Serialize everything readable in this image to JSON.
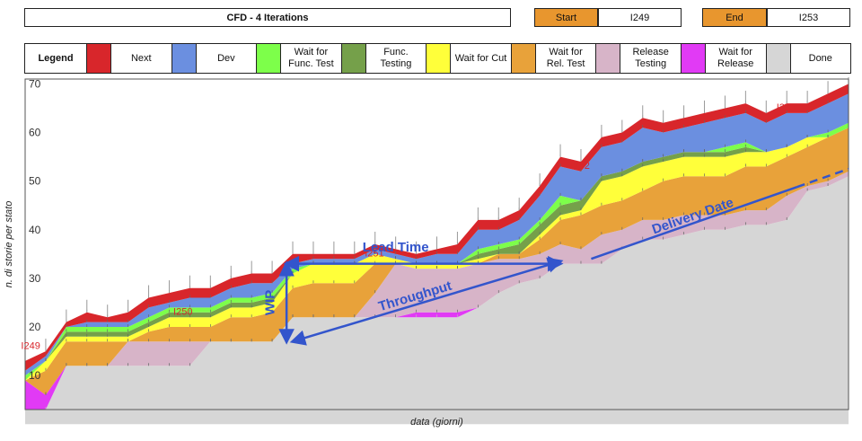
{
  "header": {
    "title": "CFD - 4 Iterations",
    "start_label": "Start",
    "start_value": "I249",
    "end_label": "End",
    "end_value": "I253"
  },
  "legend": {
    "title": "Legend",
    "items": [
      {
        "label": "Next",
        "color": "#d8262b"
      },
      {
        "label": "Dev",
        "color": "#6b8fe0"
      },
      {
        "label": "Wait for\nFunc. Test",
        "color": "#7dff4a"
      },
      {
        "label": "Func.\nTesting",
        "color": "#75a04a"
      },
      {
        "label": "Wait for Cut",
        "color": "#ffff3a"
      },
      {
        "label": "Wait for\nRel. Test",
        "color": "#e8a23a"
      },
      {
        "label": "Release\nTesting",
        "color": "#d7b4c8"
      },
      {
        "label": "Wait for\nRelease",
        "color": "#e13af5"
      },
      {
        "label": "Done",
        "color": "#d6d6d6"
      }
    ]
  },
  "chart_data": {
    "type": "area",
    "stacked": true,
    "xlabel": "data (giorni)",
    "ylabel": "n. di storie per stato",
    "ylim": [
      3,
      71
    ],
    "yticks": [
      10,
      20,
      30,
      40,
      50,
      60,
      70
    ],
    "x": [
      0,
      1,
      2,
      3,
      4,
      5,
      6,
      7,
      8,
      9,
      10,
      11,
      12,
      13,
      14,
      15,
      16,
      17,
      18,
      19,
      20,
      21,
      22,
      23,
      24,
      25,
      26,
      27,
      28,
      29,
      30,
      31,
      32,
      33,
      34,
      35,
      36,
      37,
      38,
      39,
      40
    ],
    "series": [
      {
        "name": "Done",
        "color": "#d6d6d6",
        "values": [
          3,
          3,
          12,
          12,
          12,
          12,
          12,
          12,
          12,
          17,
          17,
          17,
          17,
          22,
          22,
          22,
          22,
          22,
          22,
          22,
          22,
          22,
          24,
          27,
          29,
          30,
          33,
          33,
          33,
          36,
          38,
          38,
          39,
          40,
          40,
          41,
          41,
          42,
          48,
          49,
          51
        ]
      },
      {
        "name": "Wait for Release",
        "color": "#e13af5",
        "values": [
          6,
          3,
          0,
          0,
          0,
          0,
          0,
          0,
          0,
          0,
          0,
          0,
          0,
          0,
          0,
          0,
          0,
          0,
          0,
          1,
          1,
          1,
          0,
          0,
          0,
          0,
          0,
          0,
          0,
          0,
          0,
          0,
          0,
          0,
          0,
          0,
          0,
          0,
          0,
          0,
          0
        ]
      },
      {
        "name": "Release Testing",
        "color": "#d7b4c8",
        "values": [
          0,
          0,
          0,
          0,
          0,
          5,
          5,
          5,
          5,
          0,
          0,
          0,
          0,
          0,
          0,
          0,
          0,
          5,
          11,
          9,
          9,
          9,
          9,
          7,
          5,
          5,
          4,
          3,
          6,
          4,
          4,
          4,
          4,
          3,
          3,
          3,
          3,
          5,
          1,
          1,
          1
        ]
      },
      {
        "name": "Wait for Rel. Test",
        "color": "#e8a23a",
        "values": [
          0,
          5,
          5,
          5,
          5,
          0,
          2,
          3,
          3,
          3,
          5,
          5,
          6,
          6,
          7,
          7,
          7,
          6,
          0,
          0,
          0,
          0,
          0,
          1,
          1,
          3,
          5,
          7,
          6,
          6,
          6,
          8,
          8,
          8,
          8,
          9,
          9,
          8,
          8,
          9,
          9
        ]
      },
      {
        "name": "Wait for Cut",
        "color": "#ffff3a",
        "values": [
          0,
          2,
          1,
          1,
          1,
          1,
          1,
          2,
          2,
          2,
          2,
          2,
          2,
          3,
          4,
          4,
          4,
          2,
          1,
          1,
          1,
          1,
          1,
          0,
          0,
          1,
          1,
          1,
          5,
          5,
          5,
          4,
          4,
          4,
          4,
          3,
          3,
          2,
          2,
          0,
          0
        ]
      },
      {
        "name": "Func. Testing",
        "color": "#75a04a",
        "values": [
          0,
          0,
          1,
          1,
          1,
          1,
          1,
          1,
          1,
          1,
          1,
          1,
          1,
          0,
          0,
          0,
          0,
          0,
          0,
          0,
          0,
          0,
          1,
          1,
          2,
          2,
          2,
          2,
          1,
          1,
          1,
          1,
          1,
          1,
          1,
          1,
          0,
          0,
          0,
          0,
          0
        ]
      },
      {
        "name": "Wait for Func. Test",
        "color": "#7dff4a",
        "values": [
          1,
          0,
          1,
          1,
          1,
          1,
          1,
          1,
          1,
          1,
          1,
          1,
          1,
          1,
          0,
          0,
          0,
          0,
          0,
          0,
          0,
          0,
          1,
          1,
          1,
          1,
          2,
          0,
          0,
          0,
          0,
          0,
          0,
          0,
          1,
          1,
          0,
          0,
          0,
          1,
          1
        ]
      },
      {
        "name": "Dev",
        "color": "#6b8fe0",
        "values": [
          1,
          1,
          0,
          1,
          1,
          1,
          2,
          1,
          2,
          2,
          2,
          3,
          2,
          1,
          1,
          1,
          1,
          1,
          1,
          1,
          2,
          2,
          4,
          3,
          4,
          5,
          6,
          6,
          6,
          6,
          7,
          5,
          5,
          6,
          6,
          6,
          6,
          7,
          5,
          6,
          6
        ]
      },
      {
        "name": "Next",
        "color": "#d8262b",
        "values": [
          2,
          1,
          1,
          2,
          1,
          2,
          2,
          2,
          2,
          2,
          2,
          2,
          2,
          2,
          1,
          1,
          1,
          1,
          1,
          1,
          1,
          2,
          2,
          2,
          2,
          2,
          2,
          2,
          2,
          2,
          2,
          2,
          2,
          2,
          2,
          2,
          2,
          2,
          2,
          2,
          2
        ]
      }
    ],
    "annotations": [
      {
        "text": "I249",
        "x": -0.2,
        "y": 15.5,
        "color": "#d8262b"
      },
      {
        "text": "I250",
        "x": 7.2,
        "y": 22.5,
        "color": "#d8262b"
      },
      {
        "text": "I251",
        "x": 16.5,
        "y": 34.5,
        "color": "#d8262b"
      },
      {
        "text": "I252",
        "x": 26.5,
        "y": 52.5,
        "color": "#d8262b"
      },
      {
        "text": "I253",
        "x": 36.5,
        "y": 64.5,
        "color": "#d8262b"
      }
    ],
    "arrows": [
      {
        "label": "Lead Time",
        "x1": 12.7,
        "y1": 33,
        "x2": 26,
        "y2": 33,
        "bidirectional": true,
        "label_at": [
          18,
          35.5
        ]
      },
      {
        "label": "WIP",
        "x1": 12.7,
        "y1": 17,
        "x2": 12.7,
        "y2": 33,
        "bidirectional": true,
        "label_at": [
          12.1,
          25
        ]
      },
      {
        "label": "Throughput",
        "x1": 13,
        "y1": 17,
        "x2": 26,
        "y2": 33.5,
        "bidirectional": true,
        "label_at": [
          19,
          25.5
        ]
      },
      {
        "label": "Delivery Date",
        "x1": 27.5,
        "y1": 34,
        "x2": 40,
        "y2": 52.5,
        "dashed_from": 37.5,
        "label_at": [
          32.5,
          42
        ]
      }
    ],
    "annotation_color": "#3355cc"
  }
}
